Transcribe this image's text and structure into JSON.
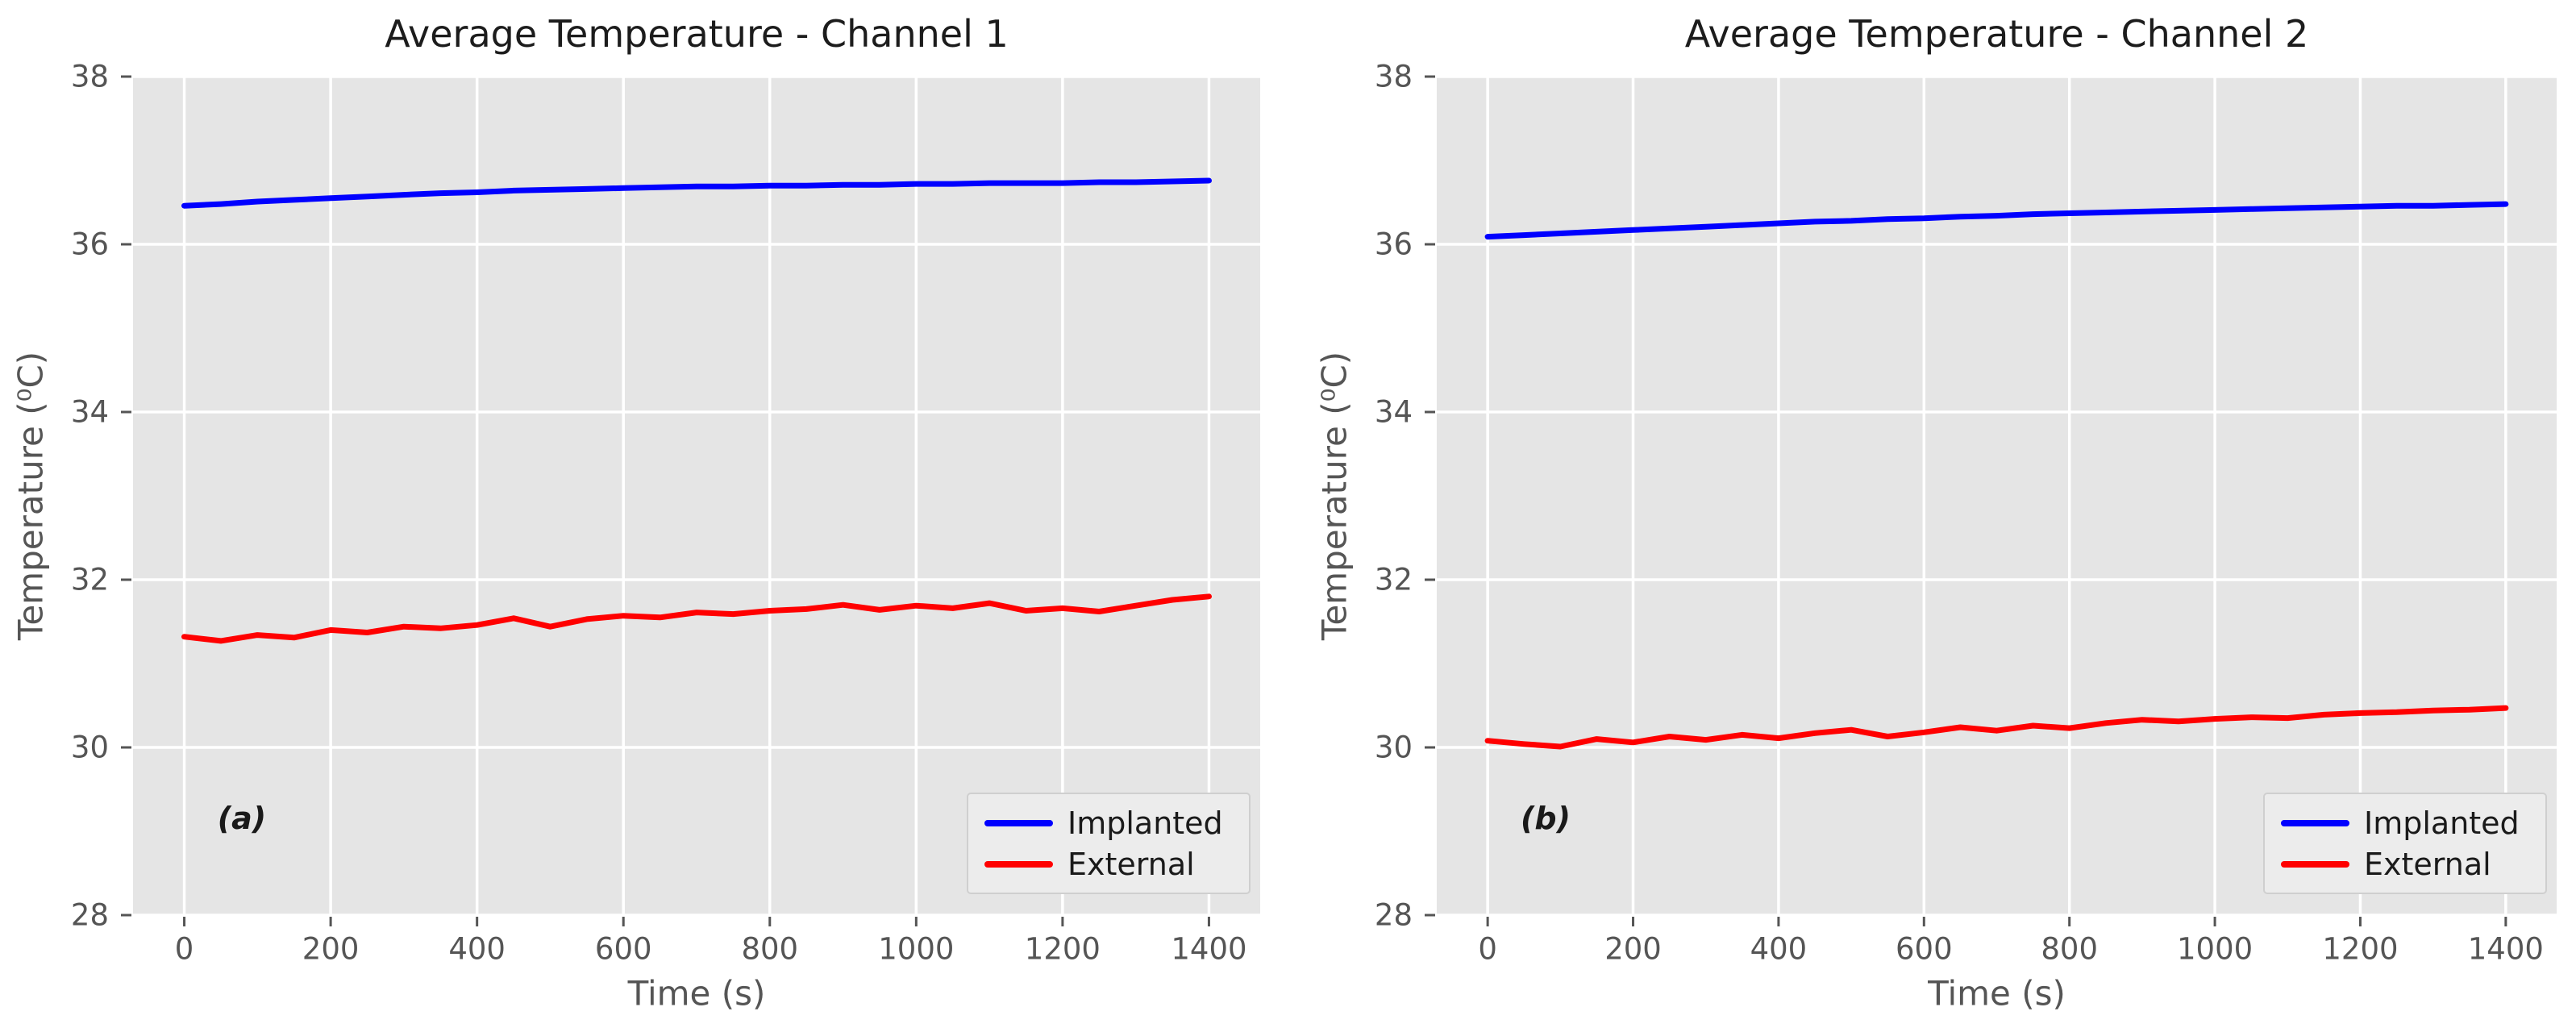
{
  "figure": {
    "background": "#ffffff",
    "panel_background": "#e5e5e5",
    "grid_color": "#ffffff",
    "tick_color": "#555555",
    "tick_label_color": "#555555",
    "axis_label_color": "#555555",
    "title_color": "#1c1c1c",
    "annotation_color": "#1a1a1a",
    "legend_background": "#ececec",
    "legend_border": "#cfcfcf",
    "legend_text_color": "#1a1a1a",
    "implanted_color": "#0000ff",
    "external_color": "#ff0000"
  },
  "chart_data": [
    {
      "type": "line",
      "title": "Average Temperature - Channel 1",
      "xlabel": "Time (s)",
      "ylabel": "Temperature (⁰C)",
      "annotation": "(a)",
      "grid": true,
      "legend_position": "lower right",
      "xlim": [
        -70,
        1470
      ],
      "ylim": [
        28,
        38
      ],
      "xticks": [
        0,
        200,
        400,
        600,
        800,
        1000,
        1200,
        1400
      ],
      "yticks": [
        28,
        30,
        32,
        34,
        36,
        38
      ],
      "x": [
        0,
        50,
        100,
        150,
        200,
        250,
        300,
        350,
        400,
        450,
        500,
        550,
        600,
        650,
        700,
        750,
        800,
        850,
        900,
        950,
        1000,
        1050,
        1100,
        1150,
        1200,
        1250,
        1300,
        1350,
        1400
      ],
      "series": [
        {
          "name": "Implanted",
          "color": "#0000ff",
          "values": [
            36.46,
            36.48,
            36.51,
            36.53,
            36.55,
            36.57,
            36.59,
            36.61,
            36.62,
            36.64,
            36.65,
            36.66,
            36.67,
            36.68,
            36.69,
            36.69,
            36.7,
            36.7,
            36.71,
            36.71,
            36.72,
            36.72,
            36.73,
            36.73,
            36.73,
            36.74,
            36.74,
            36.75,
            36.76
          ]
        },
        {
          "name": "External",
          "color": "#ff0000",
          "values": [
            31.32,
            31.27,
            31.34,
            31.31,
            31.4,
            31.37,
            31.44,
            31.42,
            31.46,
            31.54,
            31.44,
            31.53,
            31.57,
            31.55,
            31.61,
            31.59,
            31.63,
            31.65,
            31.7,
            31.64,
            31.69,
            31.66,
            31.72,
            31.63,
            31.66,
            31.62,
            31.69,
            31.76,
            31.8
          ]
        }
      ]
    },
    {
      "type": "line",
      "title": "Average Temperature - Channel 2",
      "xlabel": "Time (s)",
      "ylabel": "Temperature (⁰C)",
      "annotation": "(b)",
      "grid": true,
      "legend_position": "lower right",
      "xlim": [
        -70,
        1470
      ],
      "ylim": [
        28,
        38
      ],
      "xticks": [
        0,
        200,
        400,
        600,
        800,
        1000,
        1200,
        1400
      ],
      "yticks": [
        28,
        30,
        32,
        34,
        36,
        38
      ],
      "x": [
        0,
        50,
        100,
        150,
        200,
        250,
        300,
        350,
        400,
        450,
        500,
        550,
        600,
        650,
        700,
        750,
        800,
        850,
        900,
        950,
        1000,
        1050,
        1100,
        1150,
        1200,
        1250,
        1300,
        1350,
        1400
      ],
      "series": [
        {
          "name": "Implanted",
          "color": "#0000ff",
          "values": [
            36.09,
            36.11,
            36.13,
            36.15,
            36.17,
            36.19,
            36.21,
            36.23,
            36.25,
            36.27,
            36.28,
            36.3,
            36.31,
            36.33,
            36.34,
            36.36,
            36.37,
            36.38,
            36.39,
            36.4,
            36.41,
            36.42,
            36.43,
            36.44,
            36.45,
            36.46,
            36.46,
            36.47,
            36.48
          ]
        },
        {
          "name": "External",
          "color": "#ff0000",
          "values": [
            30.08,
            30.04,
            30.01,
            30.1,
            30.06,
            30.13,
            30.09,
            30.15,
            30.11,
            30.17,
            30.21,
            30.13,
            30.18,
            30.24,
            30.2,
            30.26,
            30.23,
            30.29,
            30.33,
            30.31,
            30.34,
            30.36,
            30.35,
            30.39,
            30.41,
            30.42,
            30.44,
            30.45,
            30.47
          ]
        }
      ]
    }
  ]
}
